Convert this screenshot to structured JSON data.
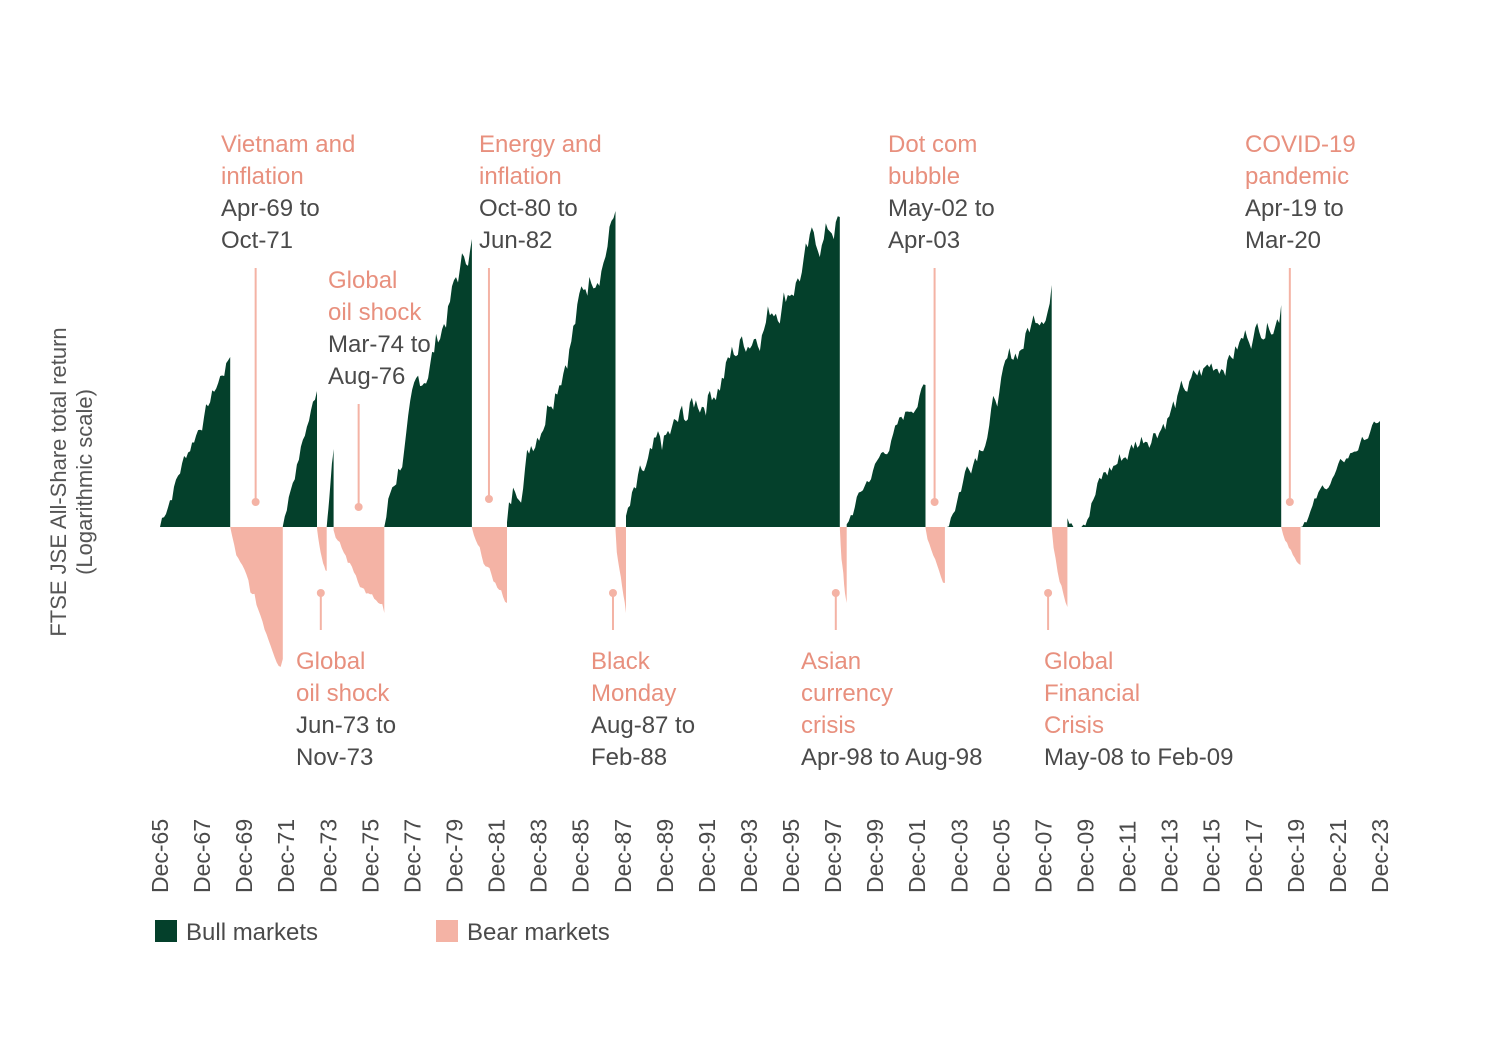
{
  "chart_data": {
    "type": "area",
    "title": "",
    "ylabel": "FTSE JSE All-Share total return",
    "ylabel_sub": "(Logarithmic scale)",
    "xlabel": "",
    "x_range": [
      "Dec-65",
      "Dec-23"
    ],
    "y_unit": "log10 cumulative return within market phase",
    "ylim": [
      -0.7,
      1.6
    ],
    "grid": false,
    "legend_position": "bottom-left",
    "colors": {
      "bull": "#04402b",
      "bear": "#f4b3a5",
      "annotation_title": "#e8907e",
      "annotation_date": "#4a4a4a"
    },
    "x_ticks": [
      "Dec-65",
      "Dec-67",
      "Dec-69",
      "Dec-71",
      "Dec-73",
      "Dec-75",
      "Dec-77",
      "Dec-79",
      "Dec-81",
      "Dec-83",
      "Dec-85",
      "Dec-87",
      "Dec-89",
      "Dec-91",
      "Dec-93",
      "Dec-95",
      "Dec-97",
      "Dec-99",
      "Dec-01",
      "Dec-03",
      "Dec-05",
      "Dec-07",
      "Dec-09",
      "Dec-11",
      "Dec-13",
      "Dec-15",
      "Dec-17",
      "Dec-19",
      "Dec-21",
      "Dec-23"
    ],
    "legend": [
      {
        "key": "bull",
        "label": "Bull markets"
      },
      {
        "key": "bear",
        "label": "Bear markets"
      }
    ],
    "series": [
      {
        "name": "Bull markets",
        "key": "bull",
        "periods": [
          {
            "start": 1965.95,
            "end": 1969.29,
            "peak": 0.85
          },
          {
            "start": 1971.79,
            "end": 1973.42,
            "peak": 0.68
          },
          {
            "start": 1973.88,
            "end": 1974.21,
            "peak": 0.39
          },
          {
            "start": 1976.62,
            "end": 1980.79,
            "peak": 1.44
          },
          {
            "start": 1982.46,
            "end": 1987.62,
            "peak": 1.58
          },
          {
            "start": 1988.12,
            "end": 1998.29,
            "peak": 1.55
          },
          {
            "start": 1998.62,
            "end": 2002.37,
            "peak": 0.71
          },
          {
            "start": 2003.29,
            "end": 2008.37,
            "peak": 1.21
          },
          {
            "start": 2009.12,
            "end": 2019.29,
            "peak": 1.11
          },
          {
            "start": 2020.21,
            "end": 2023.99,
            "peak": 0.53
          }
        ]
      },
      {
        "name": "Bear markets",
        "key": "bear",
        "periods": [
          {
            "start": 1969.29,
            "end": 1971.79,
            "trough": -0.66
          },
          {
            "start": 1973.42,
            "end": 1973.88,
            "trough": -0.22
          },
          {
            "start": 1974.21,
            "end": 1976.62,
            "trough": -0.43
          },
          {
            "start": 1980.79,
            "end": 1982.46,
            "trough": -0.38
          },
          {
            "start": 1987.62,
            "end": 1988.12,
            "trough": -0.43
          },
          {
            "start": 1998.29,
            "end": 1998.62,
            "trough": -0.38
          },
          {
            "start": 2002.37,
            "end": 2003.29,
            "trough": -0.28
          },
          {
            "start": 2008.37,
            "end": 2009.12,
            "trough": -0.4
          },
          {
            "start": 2019.29,
            "end": 2020.21,
            "trough": -0.19
          }
        ]
      }
    ],
    "annotations": [
      {
        "title": [
          "Vietnam and",
          "inflation"
        ],
        "dates": [
          "Apr-69 to",
          "Oct-71"
        ],
        "at": 1970.5,
        "position": "above"
      },
      {
        "title": [
          "Global",
          "oil shock"
        ],
        "dates": [
          "Mar-74 to",
          "Aug-76"
        ],
        "at": 1975.4,
        "position": "above"
      },
      {
        "title": [
          "Energy and",
          "inflation"
        ],
        "dates": [
          "Oct-80 to",
          "Jun-82"
        ],
        "at": 1981.6,
        "position": "above"
      },
      {
        "title": [
          "Dot com",
          "bubble"
        ],
        "dates": [
          "May-02 to",
          "Apr-03"
        ],
        "at": 2002.8,
        "position": "above"
      },
      {
        "title": [
          "COVID-19",
          "pandemic"
        ],
        "dates": [
          "Apr-19 to",
          "Mar-20"
        ],
        "at": 2019.7,
        "position": "above"
      },
      {
        "title": [
          "Global",
          "oil shock"
        ],
        "dates": [
          "Jun-73 to",
          "Nov-73"
        ],
        "at": 1973.6,
        "position": "below"
      },
      {
        "title": [
          "Black",
          "Monday"
        ],
        "dates": [
          "Aug-87 to",
          "Feb-88"
        ],
        "at": 1987.5,
        "position": "below"
      },
      {
        "title": [
          "Asian",
          "currency",
          "crisis"
        ],
        "dates": [
          "Apr-98 to Aug-98"
        ],
        "at": 1998.1,
        "position": "below"
      },
      {
        "title": [
          "Global",
          "Financial",
          "Crisis"
        ],
        "dates": [
          "May-08 to Feb-09"
        ],
        "at": 2008.2,
        "position": "below"
      }
    ]
  }
}
